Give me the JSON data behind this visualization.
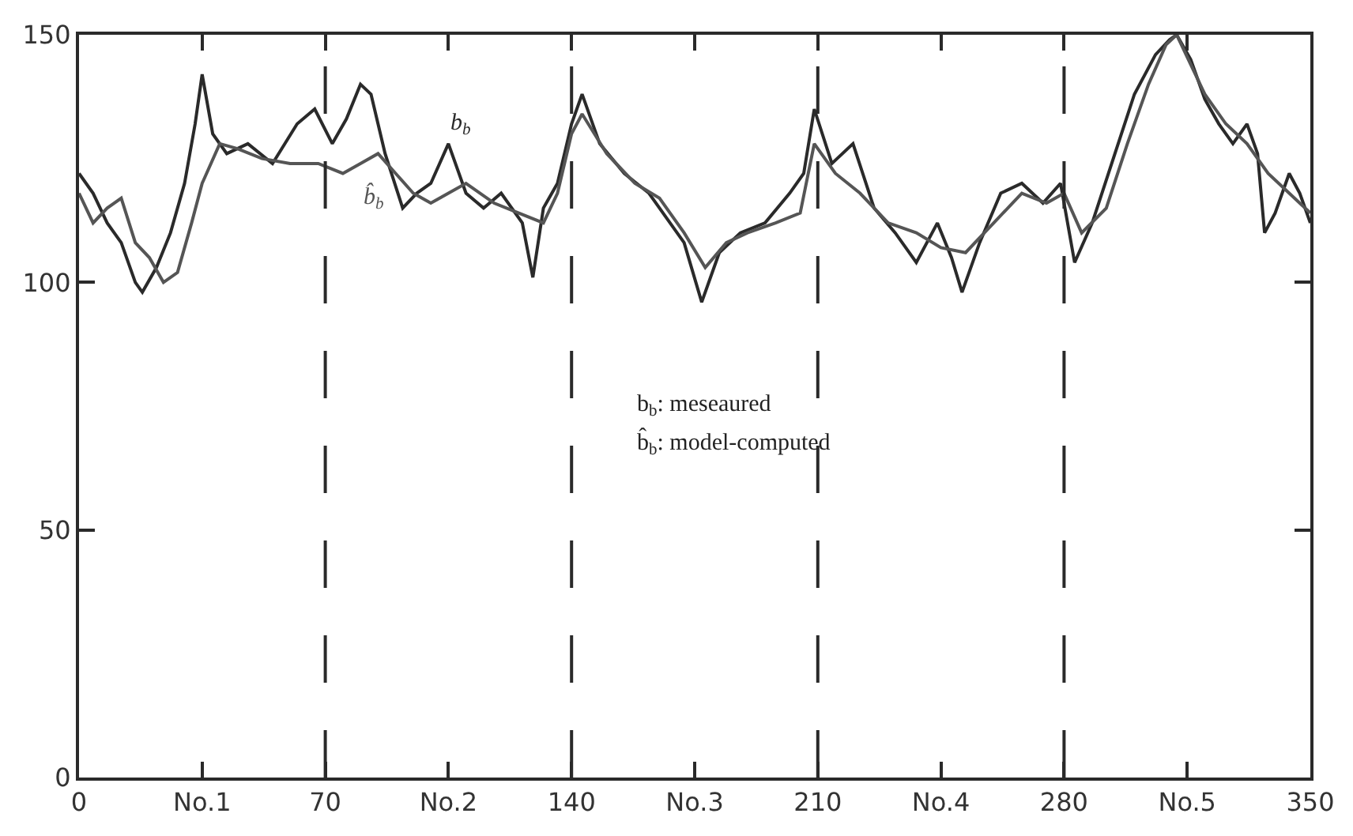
{
  "chart_data": {
    "type": "line",
    "xlim": [
      0,
      350
    ],
    "ylim": [
      0,
      150
    ],
    "xticks": [
      0,
      {
        "value": 35,
        "label": "No.1"
      },
      70,
      {
        "value": 105,
        "label": "No.2"
      },
      140,
      {
        "value": 175,
        "label": "No.3"
      },
      210,
      {
        "value": 245,
        "label": "No.4"
      },
      280,
      {
        "value": 315,
        "label": "No.5"
      },
      350
    ],
    "yticks": [
      0,
      50,
      100,
      150
    ],
    "legend": false,
    "marker": "none",
    "line_style": "solid",
    "series": [
      {
        "name": "b$_{b}$",
        "color": "#2a2a2a",
        "x": [
          0,
          4,
          8,
          12,
          16,
          18,
          22,
          26,
          30,
          33,
          35,
          38,
          42,
          48,
          55,
          62,
          67,
          72,
          76,
          80,
          83,
          87,
          92,
          96,
          100,
          105,
          110,
          115,
          120,
          126,
          129,
          132,
          136,
          140,
          143,
          148,
          155,
          162,
          168,
          172,
          177,
          182,
          188,
          195,
          202,
          206,
          209,
          214,
          220,
          226,
          232,
          238,
          244,
          248,
          251,
          256,
          262,
          268,
          274,
          279,
          283,
          288,
          294,
          300,
          306,
          310,
          312,
          316,
          320,
          324,
          328,
          332,
          335,
          337,
          340,
          344,
          347,
          350
        ],
        "values": [
          122,
          118,
          112,
          108,
          100,
          98,
          103,
          110,
          120,
          132,
          142,
          130,
          126,
          128,
          124,
          132,
          135,
          128,
          133,
          140,
          138,
          126,
          115,
          118,
          120,
          128,
          118,
          115,
          118,
          112,
          101,
          115,
          120,
          132,
          138,
          128,
          122,
          118,
          112,
          108,
          96,
          106,
          110,
          112,
          118,
          122,
          135,
          124,
          128,
          115,
          110,
          104,
          112,
          105,
          98,
          108,
          118,
          120,
          116,
          120,
          104,
          112,
          125,
          138,
          146,
          149,
          150,
          145,
          137,
          132,
          128,
          132,
          126,
          110,
          114,
          122,
          118,
          112
        ]
      },
      {
        "name": "b̂$_{b}$",
        "color": "#555555",
        "x": [
          0,
          4,
          8,
          12,
          16,
          20,
          24,
          28,
          32,
          35,
          40,
          45,
          52,
          60,
          68,
          75,
          80,
          85,
          90,
          95,
          100,
          105,
          110,
          118,
          125,
          132,
          136,
          140,
          143,
          150,
          158,
          165,
          172,
          178,
          184,
          190,
          198,
          205,
          209,
          215,
          222,
          230,
          238,
          245,
          252,
          260,
          268,
          275,
          280,
          285,
          292,
          298,
          304,
          309,
          312,
          316,
          320,
          326,
          332,
          338,
          344,
          350
        ],
        "values": [
          118,
          112,
          115,
          117,
          108,
          105,
          100,
          102,
          112,
          120,
          128,
          127,
          125,
          124,
          124,
          122,
          124,
          126,
          122,
          118,
          116,
          118,
          120,
          116,
          114,
          112,
          118,
          130,
          134,
          126,
          120,
          117,
          110,
          103,
          108,
          110,
          112,
          114,
          128,
          122,
          118,
          112,
          110,
          107,
          106,
          112,
          118,
          116,
          118,
          110,
          115,
          128,
          140,
          148,
          150,
          144,
          138,
          132,
          128,
          122,
          118,
          114
        ]
      }
    ],
    "ref_lines": [
      {
        "axis": "x",
        "value": 70,
        "color": "#2a2a2a",
        "line_style": "dashed"
      },
      {
        "axis": "x",
        "value": 140,
        "color": "#2a2a2a",
        "line_style": "dashed"
      },
      {
        "axis": "x",
        "value": 210,
        "color": "#2a2a2a",
        "line_style": "dashed"
      },
      {
        "axis": "x",
        "value": 280,
        "color": "#2a2a2a",
        "line_style": "dashed"
      }
    ],
    "annotations": [
      "b$_{b}$: meseaured",
      "b̂$_{b}$: model-computed"
    ]
  }
}
